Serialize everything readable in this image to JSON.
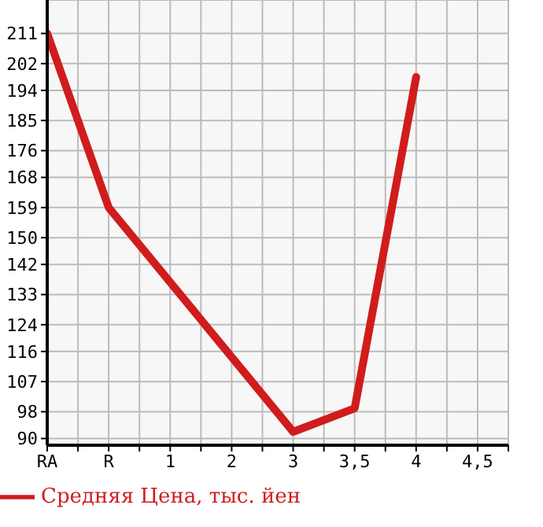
{
  "chart_data": {
    "type": "line",
    "categories": [
      "RA",
      "R",
      "1",
      "2",
      "3",
      "3,5",
      "4",
      "4,5"
    ],
    "series": [
      {
        "name": "Средняя Цена, тыс. йен",
        "color": "#d01c1c",
        "values": [
          211,
          159,
          null,
          null,
          92,
          99,
          198,
          null
        ]
      }
    ],
    "ylim": [
      88,
      221
    ],
    "yticks": [
      90,
      98,
      107,
      116,
      124,
      133,
      142,
      150,
      159,
      168,
      176,
      185,
      194,
      202,
      211
    ],
    "grid": true,
    "legend": "bottom left",
    "marker": "none",
    "line_style": "solid"
  }
}
